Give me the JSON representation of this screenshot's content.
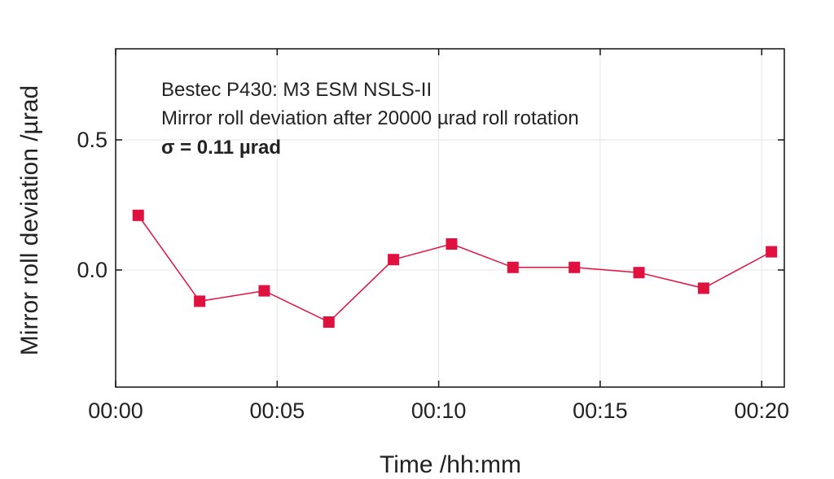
{
  "chart_data": {
    "type": "line",
    "title": "",
    "xlabel": "Time /hh:mm",
    "ylabel": "Mirror roll deviation /µrad",
    "annotations": [
      "Bestec P430: M3 ESM NSLS-II",
      "Mirror roll deviation after 20000 µrad roll rotation",
      "σ = 0.11 µrad"
    ],
    "x_unit": "minutes",
    "xlim": [
      0,
      20.7
    ],
    "ylim": [
      -0.45,
      0.85
    ],
    "x_ticks": [
      0,
      5,
      10,
      15,
      20
    ],
    "x_tick_labels": [
      "00:00",
      "00:05",
      "00:10",
      "00:15",
      "00:20"
    ],
    "y_ticks": [
      0.0,
      0.5
    ],
    "y_tick_labels": [
      "0.0",
      "0.5"
    ],
    "grid": true,
    "series": [
      {
        "color": "#e0103f",
        "marker": "square",
        "x": [
          0.7,
          2.6,
          4.6,
          6.6,
          8.6,
          10.4,
          12.3,
          14.2,
          16.2,
          18.2,
          20.3
        ],
        "y": [
          0.21,
          -0.12,
          -0.08,
          -0.2,
          0.04,
          0.1,
          0.01,
          0.01,
          -0.01,
          -0.07,
          0.07
        ]
      }
    ]
  }
}
